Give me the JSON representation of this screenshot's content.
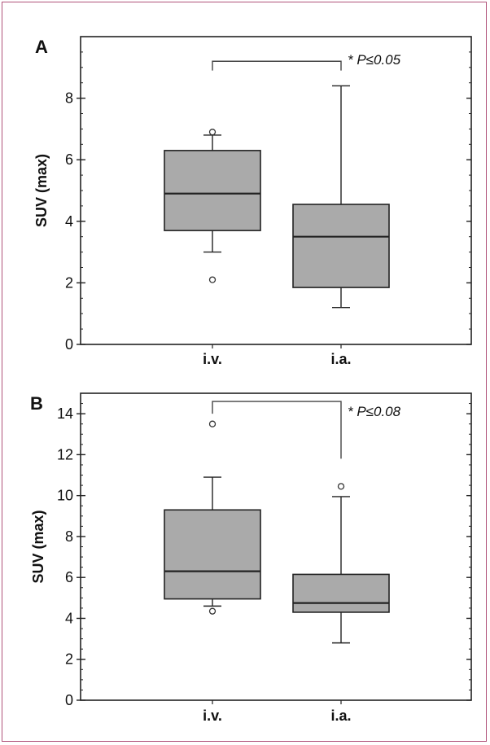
{
  "colors": {
    "box_fill": "#aaaaaa",
    "axis": "#222222",
    "frame": "#b0527a",
    "bracket": "#444444"
  },
  "chart_data": [
    {
      "type": "box",
      "panel_label": "A",
      "ylabel": "SUV (max)",
      "categories": [
        "i.v.",
        "i.a."
      ],
      "ylim": [
        0,
        10
      ],
      "yticks": [
        0,
        2,
        4,
        6,
        8
      ],
      "grid": false,
      "boxes": [
        {
          "category": "i.v.",
          "whisker_low": 3.0,
          "q1": 3.7,
          "median": 4.9,
          "q3": 6.3,
          "whisker_high": 6.8,
          "outliers": [
            2.1,
            6.9
          ]
        },
        {
          "category": "i.a.",
          "whisker_low": 1.2,
          "q1": 1.85,
          "median": 3.5,
          "q3": 4.55,
          "whisker_high": 8.4,
          "outliers": []
        }
      ],
      "annotation": {
        "text": "* P≤0.05",
        "y_level": 9.2,
        "left_end": 8.9,
        "right_end": 8.9
      }
    },
    {
      "type": "box",
      "panel_label": "B",
      "ylabel": "SUV (max)",
      "categories": [
        "i.v.",
        "i.a."
      ],
      "ylim": [
        0,
        15
      ],
      "yticks": [
        0,
        2,
        4,
        6,
        8,
        10,
        12,
        14
      ],
      "grid": false,
      "boxes": [
        {
          "category": "i.v.",
          "whisker_low": 4.6,
          "q1": 4.95,
          "median": 6.3,
          "q3": 9.3,
          "whisker_high": 10.9,
          "outliers": [
            4.35,
            13.5
          ]
        },
        {
          "category": "i.a.",
          "whisker_low": 2.8,
          "q1": 4.3,
          "median": 4.75,
          "q3": 6.15,
          "whisker_high": 9.95,
          "outliers": [
            10.45
          ]
        }
      ],
      "annotation": {
        "text": "* P≤0.08",
        "y_level": 14.6,
        "left_end": 14.0,
        "right_end": 11.8
      }
    }
  ]
}
